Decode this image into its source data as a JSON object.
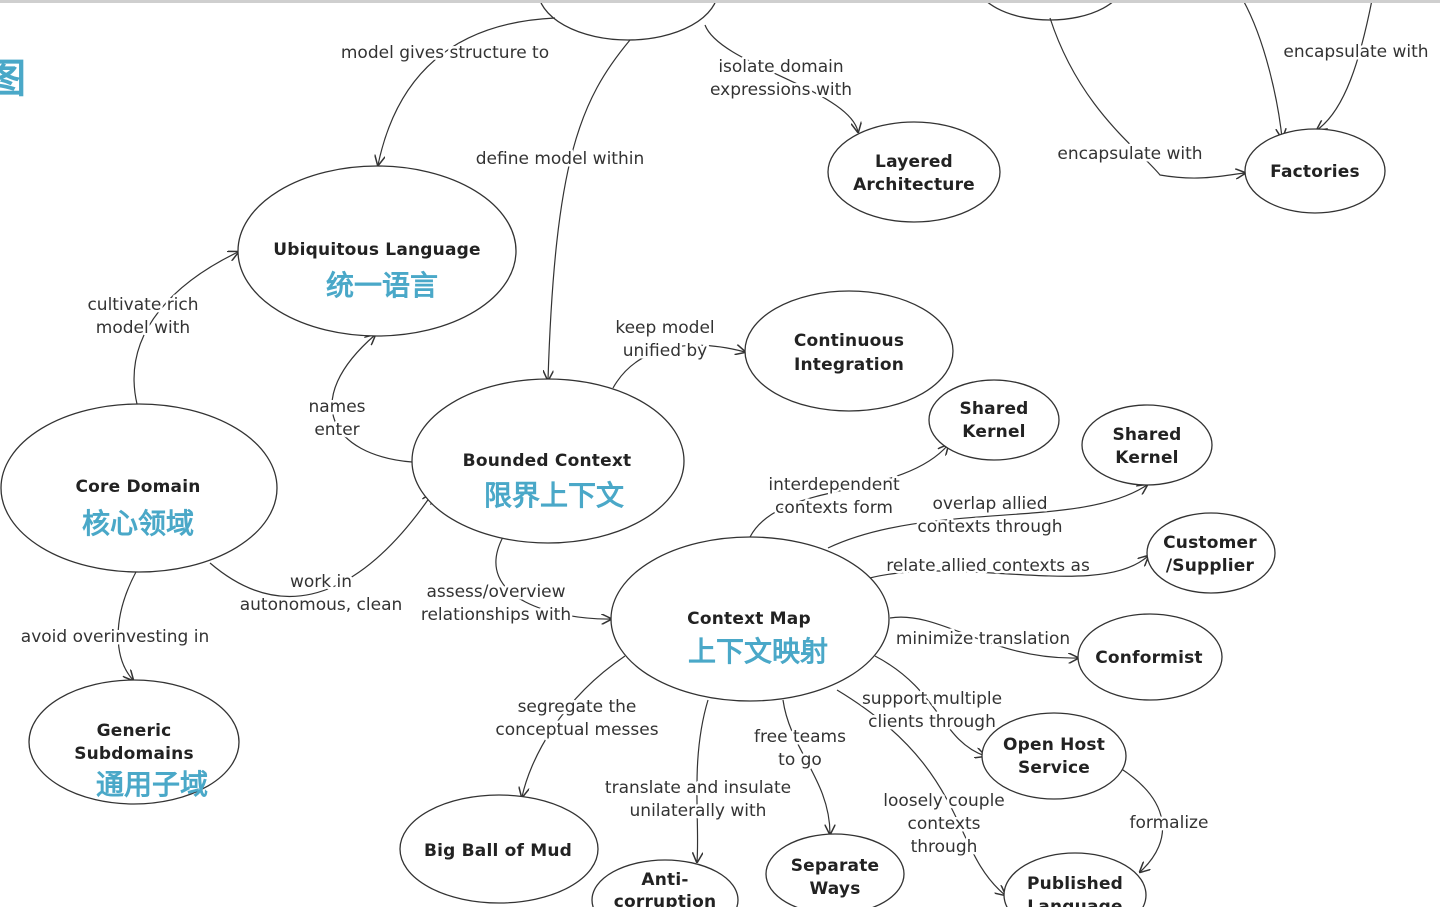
{
  "side_char": "图",
  "nodes": {
    "ubiquitous_language": {
      "title": [
        "Ubiquitous Language"
      ],
      "cn": "统一语言"
    },
    "layered_architecture": {
      "title": [
        "Layered",
        "Architecture"
      ]
    },
    "factories": {
      "title": [
        "Factories"
      ]
    },
    "continuous_integration": {
      "title": [
        "Continuous",
        "Integration"
      ]
    },
    "shared_kernel_1": {
      "title": [
        "Shared",
        "Kernel"
      ]
    },
    "shared_kernel_2": {
      "title": [
        "Shared",
        "Kernel"
      ]
    },
    "core_domain": {
      "title": [
        "Core Domain"
      ],
      "cn": "核心领域"
    },
    "bounded_context": {
      "title": [
        "Bounded Context"
      ],
      "cn": "限界上下文"
    },
    "customer_supplier": {
      "title": [
        "Customer",
        "/Supplier"
      ]
    },
    "context_map": {
      "title": [
        "Context Map"
      ],
      "cn": "上下文映射"
    },
    "conformist": {
      "title": [
        "Conformist"
      ]
    },
    "open_host_service": {
      "title": [
        "Open Host",
        "Service"
      ]
    },
    "generic_subdomains": {
      "title": [
        "Generic",
        "Subdomains"
      ],
      "cn": "通用子域"
    },
    "big_ball_of_mud": {
      "title": [
        "Big Ball of Mud"
      ]
    },
    "anti_corruption": {
      "title": [
        "Anti-",
        "corruption"
      ]
    },
    "separate_ways": {
      "title": [
        "Separate",
        "Ways"
      ]
    },
    "published_language": {
      "title": [
        "Published",
        "Language"
      ]
    }
  },
  "edges": {
    "model_gives_structure": [
      "model gives structure to"
    ],
    "isolate_domain": [
      "isolate domain",
      "expressions with"
    ],
    "encapsulate_top": [
      "encapsulate with"
    ],
    "encapsulate_mid": [
      "encapsulate with"
    ],
    "define_model_within": [
      "define model within"
    ],
    "cultivate_rich": [
      "cultivate rich",
      "model with"
    ],
    "keep_model_unified": [
      "keep model",
      "unified by"
    ],
    "names_enter": [
      "names",
      "enter"
    ],
    "interdependent": [
      "interdependent",
      "contexts form"
    ],
    "overlap_allied": [
      "overlap allied",
      "contexts through"
    ],
    "relate_allied": [
      "relate allied contexts as"
    ],
    "work_in": [
      "work in",
      "autonomous, clean"
    ],
    "assess_overview": [
      "assess/overview",
      "relationships with"
    ],
    "avoid_overinvesting": [
      "avoid overinvesting in"
    ],
    "minimize_translation": [
      "minimize translation"
    ],
    "segregate": [
      "segregate the",
      "conceptual messes"
    ],
    "support_multiple": [
      "support multiple",
      "clients through"
    ],
    "free_teams": [
      "free teams",
      "to go"
    ],
    "translate_insulate": [
      "translate and insulate",
      "unilaterally with"
    ],
    "loosely_couple": [
      "loosely couple",
      "contexts",
      "through"
    ],
    "formalize": [
      "formalize"
    ]
  }
}
